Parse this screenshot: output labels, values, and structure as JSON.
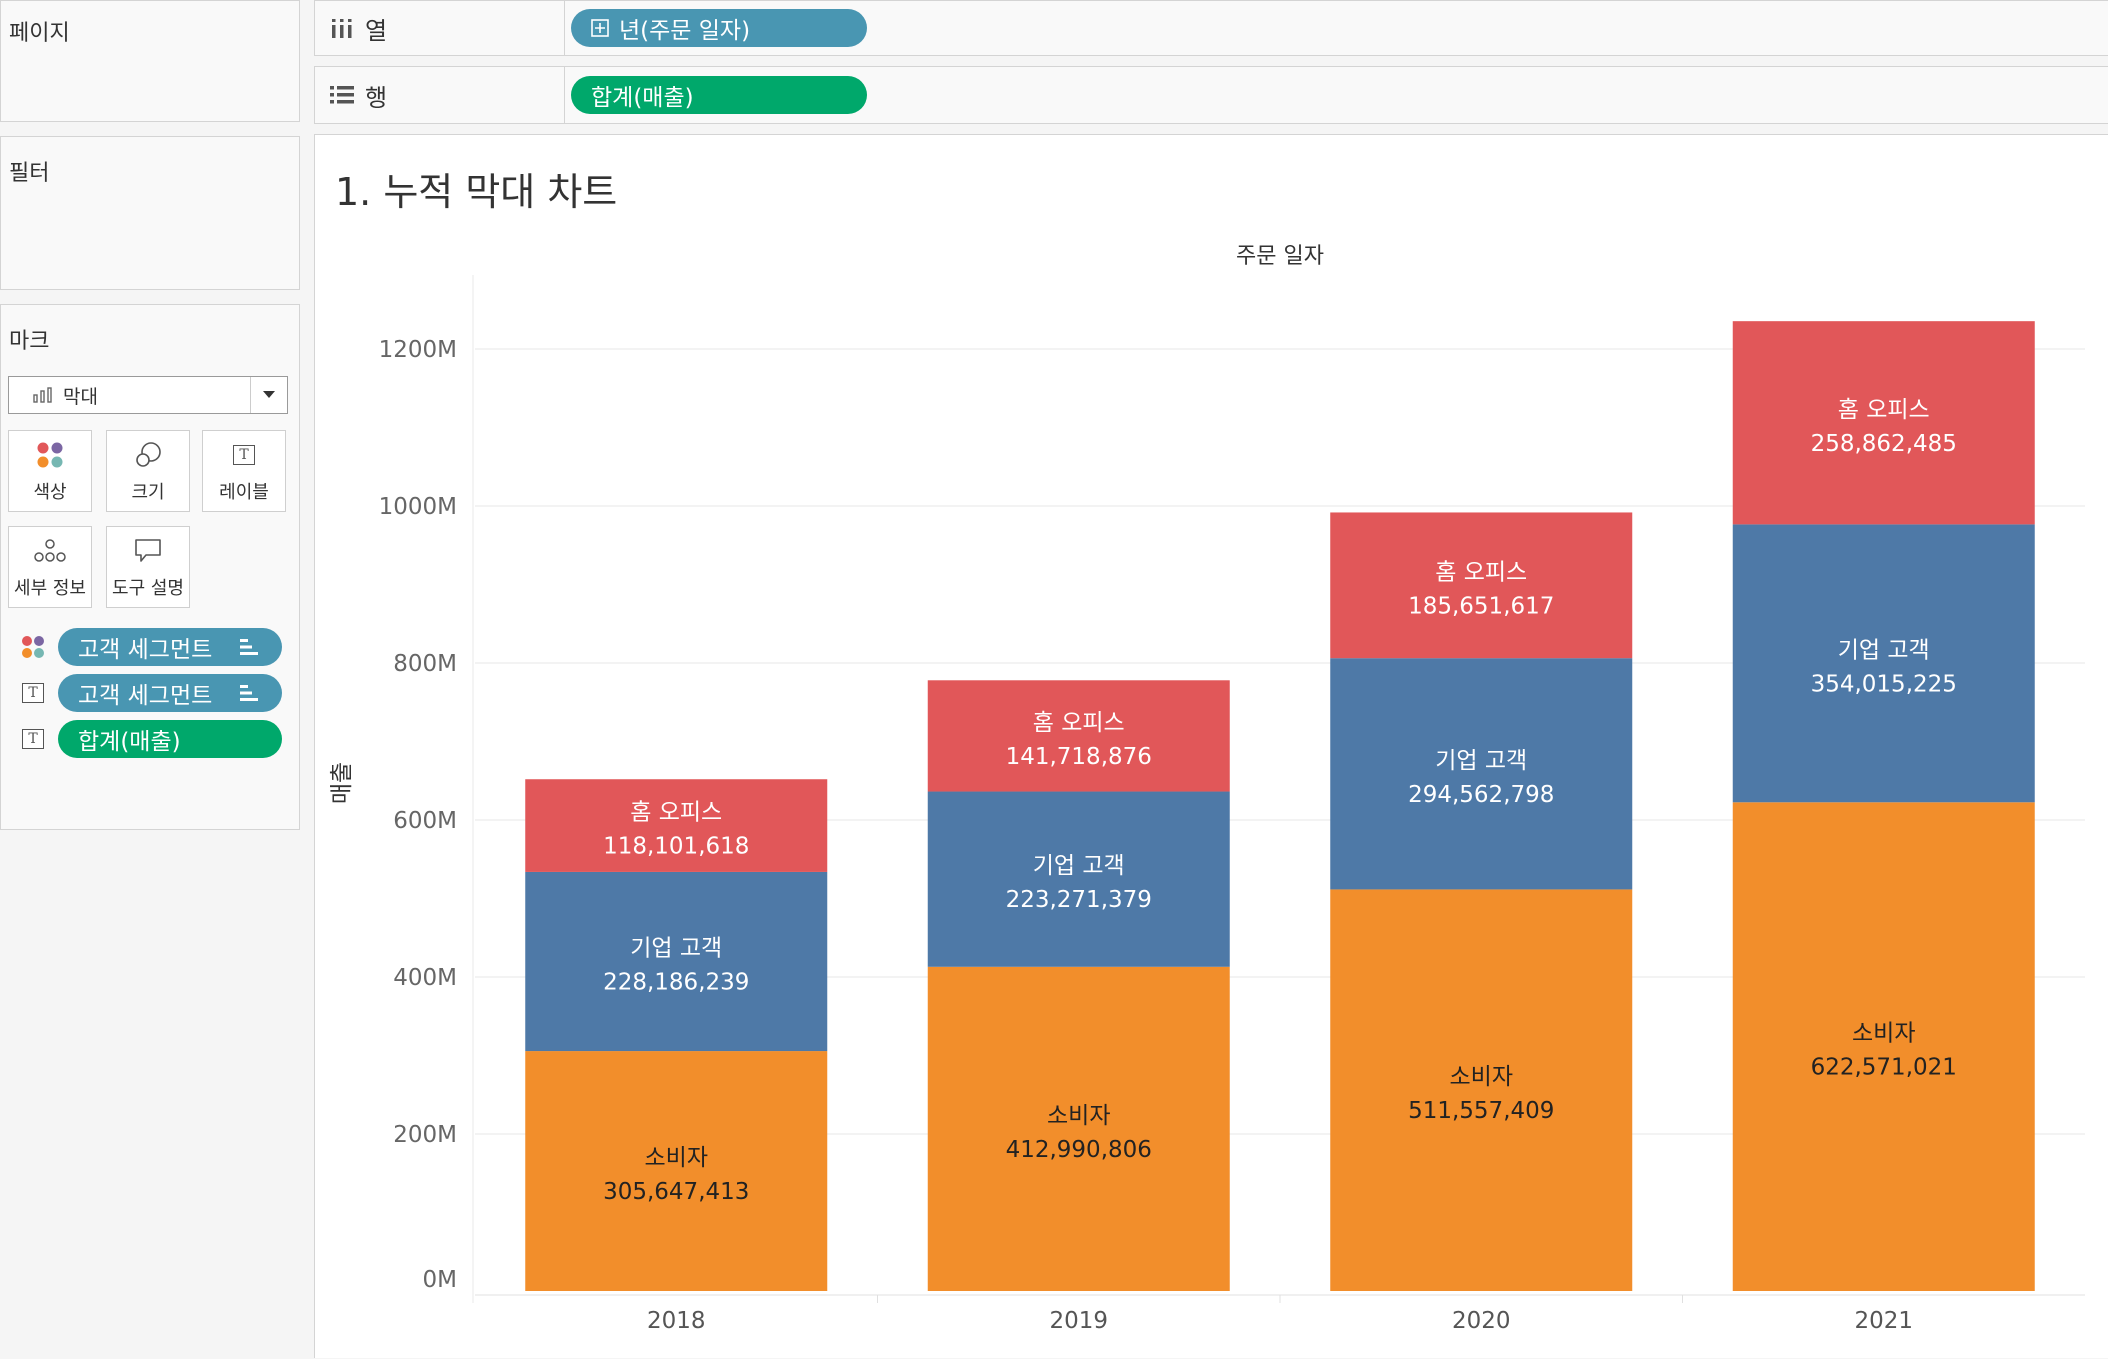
{
  "sidebar": {
    "pages_title": "페이지",
    "filters_title": "필터",
    "marks_title": "마크",
    "mark_type": "막대",
    "mark_buttons": [
      "색상",
      "크기",
      "레이블",
      "세부 정보",
      "도구 설명"
    ],
    "mark_pills": [
      {
        "label": "고객 세그먼트",
        "kind": "color",
        "color": "#4996b2"
      },
      {
        "label": "고객 세그먼트",
        "kind": "label",
        "color": "#4996b2"
      },
      {
        "label": "합계(매출)",
        "kind": "label",
        "color": "#00a86b"
      }
    ]
  },
  "shelves": {
    "columns_label": "열",
    "columns_pill": "년(주문 일자)",
    "rows_label": "행",
    "rows_pill": "합계(매출)"
  },
  "sheet": {
    "title": "1. 누적 막대 차트"
  },
  "colors": {
    "consumer": "#f28e2b",
    "corporate": "#4e79a7",
    "home_office": "#e15759",
    "pill_blue": "#4996b2",
    "pill_green": "#00a86b"
  },
  "chart_data": {
    "type": "bar",
    "stacked": true,
    "title": "",
    "header": "주문 일자",
    "xlabel": "",
    "ylabel": "매출",
    "categories": [
      "2018",
      "2019",
      "2020",
      "2021"
    ],
    "series": [
      {
        "name": "소비자",
        "values": [
          305647413,
          412990806,
          511557409,
          622571021
        ],
        "labels": [
          "305,647,413",
          "412,990,806",
          "511,557,409",
          "622,571,021"
        ],
        "color": "#f28e2b",
        "text_color": "#222222"
      },
      {
        "name": "기업 고객",
        "values": [
          228186239,
          223271379,
          294562798,
          354015225
        ],
        "labels": [
          "228,186,239",
          "223,271,379",
          "294,562,798",
          "354,015,225"
        ],
        "color": "#4e79a7",
        "text_color": "#ffffff"
      },
      {
        "name": "홈 오피스",
        "values": [
          118101618,
          141718876,
          185651617,
          258862485
        ],
        "labels": [
          "118,101,618",
          "141,718,876",
          "185,651,617",
          "258,862,485"
        ],
        "color": "#e15759",
        "text_color": "#ffffff"
      }
    ],
    "ylim": [
      0,
      1300000000
    ],
    "yticks": [
      0,
      200000000,
      400000000,
      600000000,
      800000000,
      1000000000,
      1200000000
    ],
    "ytick_labels": [
      "0M",
      "200M",
      "400M",
      "600M",
      "800M",
      "1000M",
      "1200M"
    ],
    "grid": true,
    "legend": "none"
  }
}
